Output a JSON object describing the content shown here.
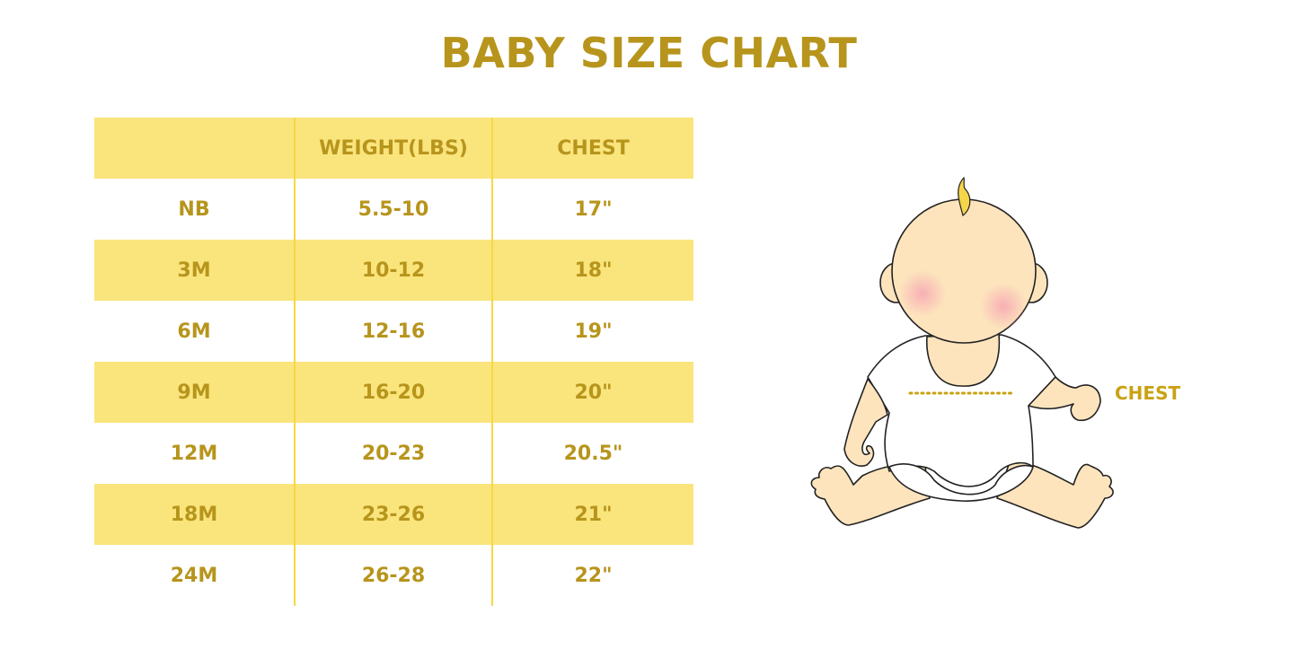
{
  "title": "BABY SIZE CHART",
  "table": {
    "headers": [
      "",
      "WEIGHT(LBS)",
      "CHEST"
    ],
    "rows": [
      [
        "NB",
        "5.5-10",
        "17\""
      ],
      [
        "3M",
        "10-12",
        "18\""
      ],
      [
        "6M",
        "12-16",
        "19\""
      ],
      [
        "9M",
        "16-20",
        "20\""
      ],
      [
        "12M",
        "20-23",
        "20.5\""
      ],
      [
        "18M",
        "23-26",
        "21\""
      ],
      [
        "24M",
        "26-28",
        "22\""
      ]
    ]
  },
  "illustration": {
    "chest_label": "CHEST"
  },
  "colors": {
    "accent_text": "#b7951c",
    "row_highlight": "#fae47c",
    "skin": "#fde4bd"
  }
}
